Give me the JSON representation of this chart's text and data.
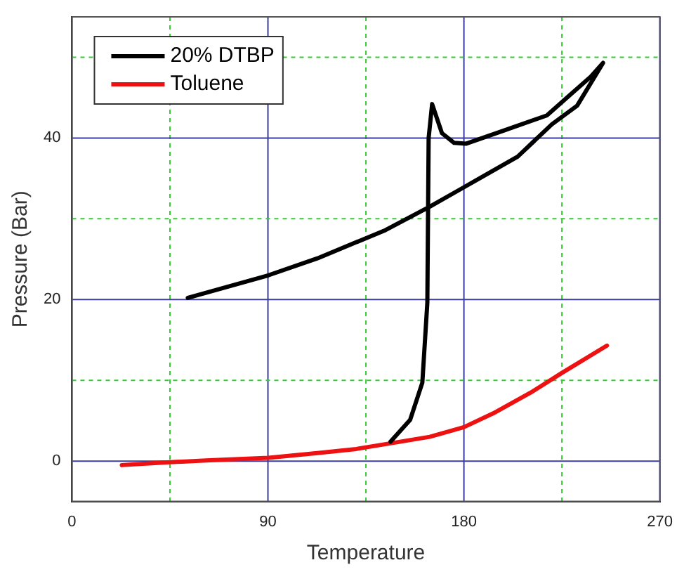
{
  "chart_data": {
    "type": "line",
    "xlabel": "Temperature",
    "ylabel": "Pressure (Bar)",
    "xlim": [
      0,
      270
    ],
    "xticks": [
      0,
      {
        "value": 45,
        "label": null
      },
      90,
      {
        "value": 135,
        "label": null
      },
      180,
      {
        "value": 225,
        "label": null
      },
      270
    ],
    "ylim": [
      -5,
      55
    ],
    "yticks": [
      0,
      {
        "value": 10,
        "label": null
      },
      20,
      {
        "value": 30,
        "label": null
      },
      40,
      {
        "value": 50,
        "label": null
      }
    ],
    "grid": true,
    "legend": "top left",
    "marker": "none",
    "line_style": "solid",
    "series": [
      {
        "name": "20% DTBP",
        "color": "#000000",
        "x": [
          146.3,
          155.3,
          160.9,
          163.2,
          163.8,
          165.4,
          169.9,
          175.5,
          181.1,
          198,
          218.1,
          229.4,
          238.3,
          243.9,
          232,
          220.4,
          204.7,
          180,
          164.3,
          144,
          112.7,
          90.2,
          53.2
        ],
        "values": [
          2.4,
          5.1,
          9.7,
          19.6,
          40,
          44.2,
          40.6,
          39.4,
          39.3,
          40.9,
          42.8,
          45.5,
          47.6,
          49.3,
          44,
          41.7,
          37.7,
          33.9,
          31.5,
          28.6,
          25.1,
          23.0,
          20.2
        ]
      },
      {
        "name": "Toluene",
        "color": "#ee1111",
        "x": [
          22.9,
          40.8,
          63.3,
          90.2,
          112.7,
          130.6,
          146.3,
          164.3,
          180,
          193.4,
          211.4,
          224.9,
          245.7
        ],
        "values": [
          -0.5,
          -0.2,
          0.1,
          0.4,
          1.0,
          1.5,
          2.2,
          3.0,
          4.2,
          5.9,
          8.6,
          10.9,
          14.3
        ]
      }
    ]
  }
}
